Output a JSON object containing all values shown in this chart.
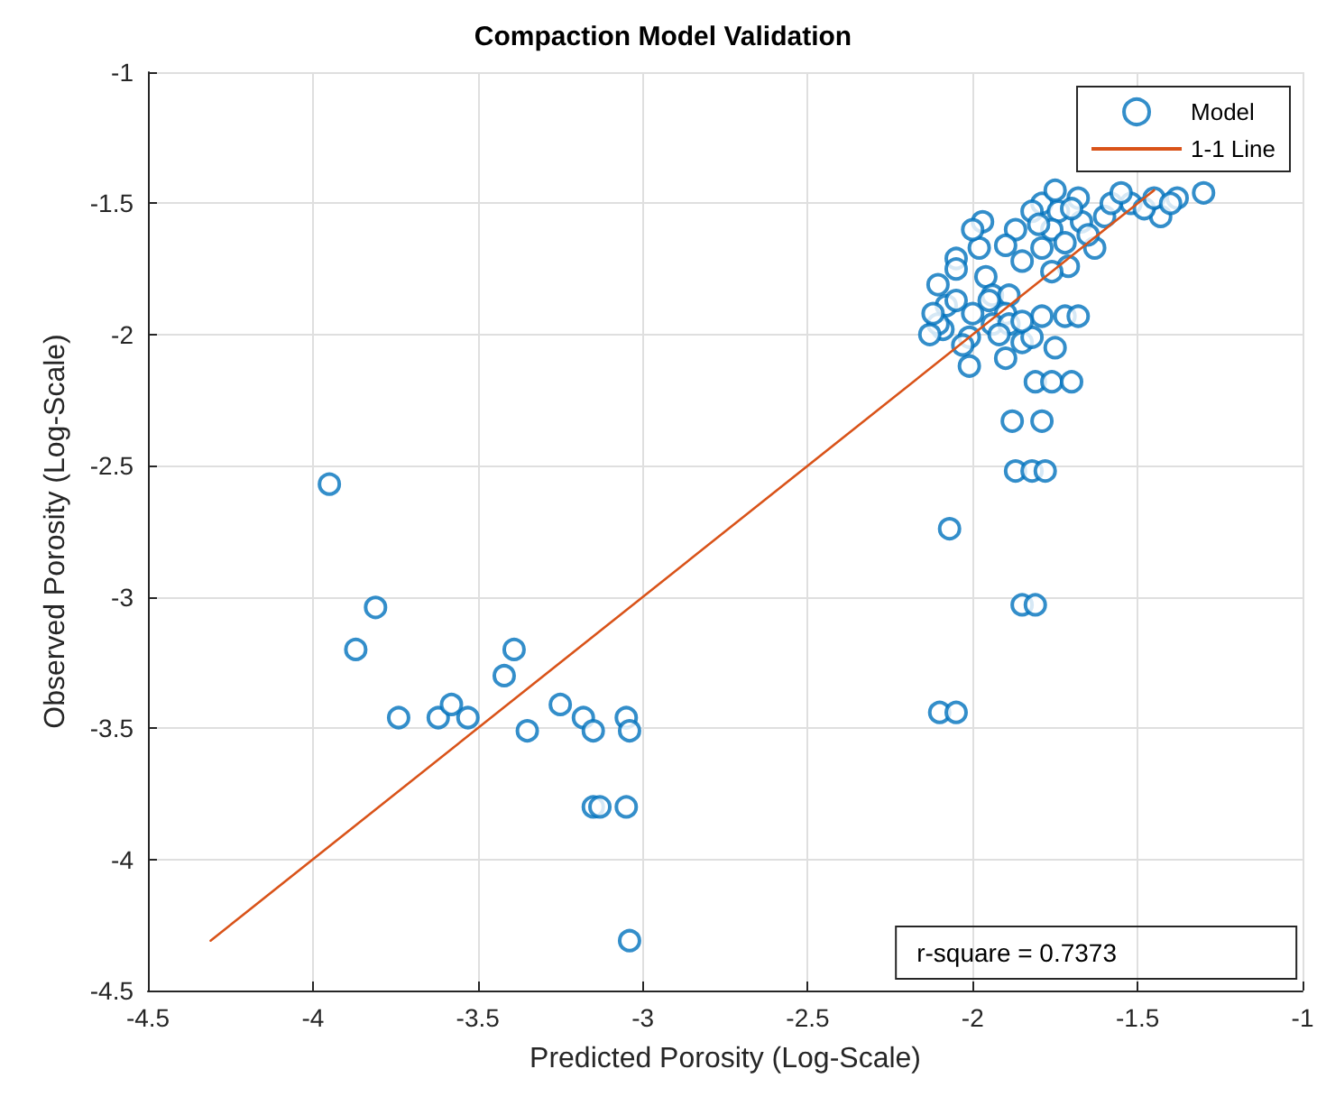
{
  "chart_data": {
    "type": "scatter",
    "title": "Compaction Model Validation",
    "xlabel": "Predicted Porosity (Log-Scale)",
    "ylabel": "Observed Porosity (Log-Scale)",
    "xlim": [
      -4.5,
      -1
    ],
    "xticks": [
      -4.5,
      -4,
      -3.5,
      -3,
      -2.5,
      -2,
      -1.5,
      -1
    ],
    "ylim": [
      -4.5,
      -1
    ],
    "yticks": [
      -4.5,
      -4,
      -3.5,
      -3,
      -2.5,
      -2,
      -1.5,
      -1
    ],
    "grid": true,
    "legend": "top right",
    "line_style": "solid",
    "annotations": [
      "r-square = 0.7373"
    ],
    "series": [
      {
        "name": "Model",
        "color": "#0072bd",
        "marker": "circle",
        "x": [
          -3.95,
          -3.87,
          -3.81,
          -3.74,
          -3.62,
          -3.58,
          -3.53,
          -3.42,
          -3.39,
          -3.35,
          -3.25,
          -3.18,
          -3.15,
          -3.15,
          -3.13,
          -3.05,
          -3.04,
          -3.05,
          -3.04,
          -2.1,
          -2.05,
          -2.07,
          -1.85,
          -1.81,
          -1.87,
          -1.82,
          -1.78,
          -1.88,
          -1.79,
          -1.81,
          -1.76,
          -1.7,
          -1.75,
          -1.72,
          -1.68,
          -1.97,
          -2.105,
          -2.05,
          -2.08,
          -2.09,
          -2.01,
          -2.01,
          -1.96,
          -1.94,
          -1.98,
          -1.87,
          -1.85,
          -1.79,
          -1.9,
          -1.85,
          -1.82,
          -1.79,
          -1.71,
          -1.63,
          -1.6,
          -1.79,
          -1.74,
          -1.68,
          -1.52,
          -1.43,
          -1.38,
          -1.3,
          -1.89,
          -1.9,
          -2.0,
          -1.94,
          -1.89,
          -1.76,
          -1.76,
          -1.67,
          -1.82,
          -2.05,
          -2.105,
          -2.13,
          -2.12,
          -2.0,
          -1.95,
          -2.03,
          -1.58,
          -1.48,
          -1.65,
          -1.72,
          -1.9,
          -1.55,
          -1.45,
          -1.7,
          -2.05,
          -1.92,
          -1.85,
          -1.4,
          -1.8,
          -1.75
        ],
        "values": [
          -2.57,
          -3.2,
          -3.04,
          -3.46,
          -3.46,
          -3.41,
          -3.46,
          -3.3,
          -3.2,
          -3.51,
          -3.41,
          -3.46,
          -3.51,
          -3.8,
          -3.8,
          -3.46,
          -3.51,
          -3.8,
          -4.31,
          -3.44,
          -3.44,
          -2.74,
          -3.03,
          -3.03,
          -2.52,
          -2.52,
          -2.52,
          -2.33,
          -2.33,
          -2.18,
          -2.18,
          -2.18,
          -2.05,
          -1.93,
          -1.93,
          -1.57,
          -1.81,
          -1.71,
          -1.89,
          -1.98,
          -2.01,
          -2.12,
          -1.78,
          -1.85,
          -1.67,
          -1.6,
          -1.72,
          -1.67,
          -2.09,
          -2.03,
          -2.01,
          -1.93,
          -1.74,
          -1.67,
          -1.55,
          -1.5,
          -1.53,
          -1.48,
          -1.5,
          -1.55,
          -1.48,
          -1.46,
          -1.85,
          -1.92,
          -1.92,
          -1.96,
          -1.96,
          -1.76,
          -1.6,
          -1.57,
          -1.53,
          -1.87,
          -1.96,
          -2.0,
          -1.92,
          -1.6,
          -1.87,
          -2.04,
          -1.5,
          -1.52,
          -1.62,
          -1.65,
          -1.66,
          -1.46,
          -1.48,
          -1.52,
          -1.75,
          -2.0,
          -1.95,
          -1.5,
          -1.58,
          -1.45
        ]
      },
      {
        "name": "1-1 Line",
        "type": "line",
        "color": "#d95319",
        "marker": "none",
        "x": [
          -4.31,
          -1.45
        ],
        "values": [
          -4.31,
          -1.45
        ]
      }
    ]
  }
}
